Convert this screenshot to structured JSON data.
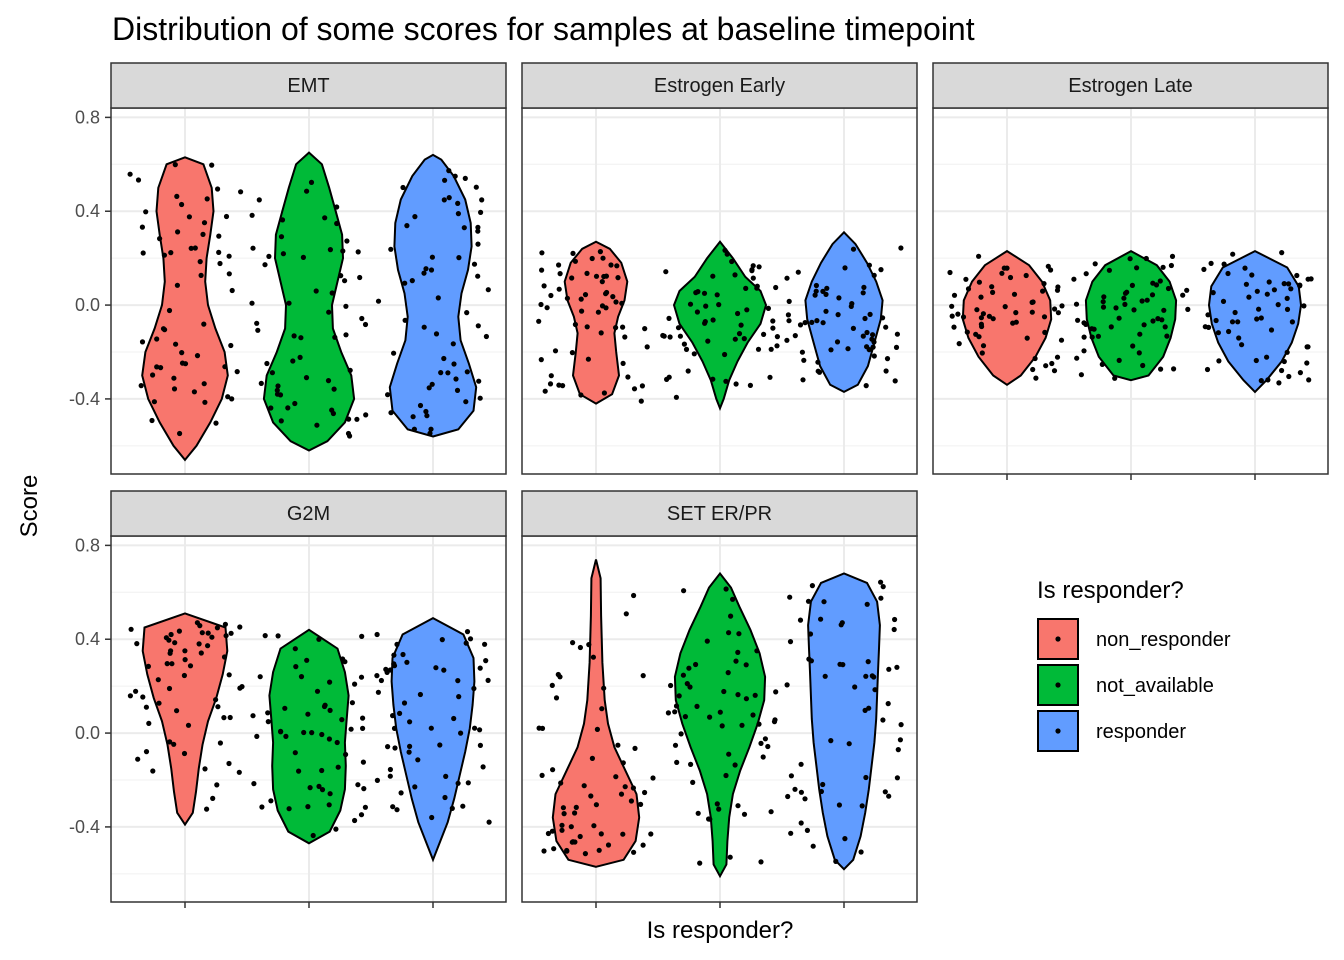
{
  "chart_data": {
    "type": "violin",
    "title": "Distribution of some scores for samples at baseline timepoint",
    "xlabel": "Is responder?",
    "ylabel": "Score",
    "ylim": [
      -0.72,
      0.84
    ],
    "yticks": [
      -0.4,
      0.0,
      0.4,
      0.8
    ],
    "ytick_labels": [
      "-0.4",
      "0.0",
      "0.4",
      "0.8"
    ],
    "grid": true,
    "legend": {
      "title": "Is responder?",
      "placement": "right",
      "entries": [
        "non_responder",
        "not_available",
        "responder"
      ]
    },
    "categories": [
      "non_responder",
      "not_available",
      "responder"
    ],
    "colors": {
      "non_responder": "#F8766D",
      "not_available": "#00BA38",
      "responder": "#619CFF"
    },
    "panels": [
      {
        "name": "EMT",
        "series": [
          {
            "category": "non_responder",
            "min": -0.66,
            "max": 0.63,
            "profile": [
              [
                -0.66,
                0.0
              ],
              [
                -0.6,
                0.25
              ],
              [
                -0.5,
                0.55
              ],
              [
                -0.4,
                0.8
              ],
              [
                -0.3,
                0.93
              ],
              [
                -0.2,
                0.86
              ],
              [
                -0.1,
                0.66
              ],
              [
                0.0,
                0.5
              ],
              [
                0.1,
                0.44
              ],
              [
                0.2,
                0.47
              ],
              [
                0.3,
                0.55
              ],
              [
                0.4,
                0.62
              ],
              [
                0.5,
                0.58
              ],
              [
                0.6,
                0.4
              ],
              [
                0.63,
                0.0
              ]
            ]
          },
          {
            "category": "not_available",
            "min": -0.62,
            "max": 0.65,
            "profile": [
              [
                -0.62,
                0.0
              ],
              [
                -0.58,
                0.4
              ],
              [
                -0.5,
                0.78
              ],
              [
                -0.4,
                0.98
              ],
              [
                -0.3,
                0.92
              ],
              [
                -0.2,
                0.7
              ],
              [
                -0.1,
                0.52
              ],
              [
                0.0,
                0.5
              ],
              [
                0.1,
                0.62
              ],
              [
                0.2,
                0.74
              ],
              [
                0.3,
                0.72
              ],
              [
                0.4,
                0.58
              ],
              [
                0.5,
                0.44
              ],
              [
                0.6,
                0.28
              ],
              [
                0.65,
                0.0
              ]
            ]
          },
          {
            "category": "responder",
            "min": -0.56,
            "max": 0.64,
            "profile": [
              [
                -0.56,
                0.0
              ],
              [
                -0.53,
                0.55
              ],
              [
                -0.45,
                0.88
              ],
              [
                -0.35,
                0.94
              ],
              [
                -0.25,
                0.78
              ],
              [
                -0.15,
                0.6
              ],
              [
                -0.05,
                0.55
              ],
              [
                0.05,
                0.62
              ],
              [
                0.15,
                0.76
              ],
              [
                0.25,
                0.84
              ],
              [
                0.35,
                0.82
              ],
              [
                0.45,
                0.7
              ],
              [
                0.55,
                0.45
              ],
              [
                0.62,
                0.18
              ],
              [
                0.64,
                0.0
              ]
            ]
          }
        ]
      },
      {
        "name": "Estrogen Early",
        "series": [
          {
            "category": "non_responder",
            "min": -0.42,
            "max": 0.27,
            "profile": [
              [
                -0.42,
                0.0
              ],
              [
                -0.38,
                0.35
              ],
              [
                -0.3,
                0.5
              ],
              [
                -0.2,
                0.44
              ],
              [
                -0.12,
                0.4
              ],
              [
                -0.05,
                0.48
              ],
              [
                0.02,
                0.62
              ],
              [
                0.1,
                0.68
              ],
              [
                0.18,
                0.55
              ],
              [
                0.24,
                0.3
              ],
              [
                0.27,
                0.0
              ]
            ]
          },
          {
            "category": "not_available",
            "min": -0.44,
            "max": 0.27,
            "profile": [
              [
                -0.44,
                0.0
              ],
              [
                -0.4,
                0.08
              ],
              [
                -0.32,
                0.2
              ],
              [
                -0.24,
                0.38
              ],
              [
                -0.16,
                0.6
              ],
              [
                -0.08,
                0.88
              ],
              [
                0.0,
                1.0
              ],
              [
                0.06,
                0.88
              ],
              [
                0.12,
                0.55
              ],
              [
                0.2,
                0.28
              ],
              [
                0.27,
                0.0
              ]
            ]
          },
          {
            "category": "responder",
            "min": -0.37,
            "max": 0.31,
            "profile": [
              [
                -0.37,
                0.0
              ],
              [
                -0.34,
                0.3
              ],
              [
                -0.26,
                0.52
              ],
              [
                -0.16,
                0.66
              ],
              [
                -0.06,
                0.8
              ],
              [
                0.02,
                0.84
              ],
              [
                0.1,
                0.7
              ],
              [
                0.18,
                0.5
              ],
              [
                0.26,
                0.25
              ],
              [
                0.31,
                0.0
              ]
            ]
          }
        ]
      },
      {
        "name": "Estrogen Late",
        "series": [
          {
            "category": "non_responder",
            "min": -0.34,
            "max": 0.23,
            "profile": [
              [
                -0.34,
                0.0
              ],
              [
                -0.3,
                0.3
              ],
              [
                -0.22,
                0.62
              ],
              [
                -0.14,
                0.84
              ],
              [
                -0.06,
                0.96
              ],
              [
                0.02,
                0.94
              ],
              [
                0.1,
                0.76
              ],
              [
                0.17,
                0.48
              ],
              [
                0.23,
                0.0
              ]
            ]
          },
          {
            "category": "not_available",
            "min": -0.32,
            "max": 0.23,
            "profile": [
              [
                -0.32,
                0.0
              ],
              [
                -0.3,
                0.38
              ],
              [
                -0.22,
                0.7
              ],
              [
                -0.14,
                0.86
              ],
              [
                -0.06,
                0.96
              ],
              [
                0.02,
                0.98
              ],
              [
                0.1,
                0.84
              ],
              [
                0.17,
                0.56
              ],
              [
                0.23,
                0.0
              ]
            ]
          },
          {
            "category": "responder",
            "min": -0.37,
            "max": 0.23,
            "profile": [
              [
                -0.37,
                0.0
              ],
              [
                -0.32,
                0.25
              ],
              [
                -0.24,
                0.58
              ],
              [
                -0.16,
                0.8
              ],
              [
                -0.08,
                0.94
              ],
              [
                0.0,
                1.0
              ],
              [
                0.08,
                0.95
              ],
              [
                0.16,
                0.7
              ],
              [
                0.23,
                0.0
              ]
            ]
          }
        ]
      },
      {
        "name": "G2M",
        "series": [
          {
            "category": "non_responder",
            "min": -0.39,
            "max": 0.51,
            "profile": [
              [
                -0.39,
                0.0
              ],
              [
                -0.34,
                0.17
              ],
              [
                -0.25,
                0.24
              ],
              [
                -0.15,
                0.3
              ],
              [
                -0.05,
                0.38
              ],
              [
                0.05,
                0.5
              ],
              [
                0.15,
                0.68
              ],
              [
                0.25,
                0.82
              ],
              [
                0.35,
                0.92
              ],
              [
                0.45,
                0.88
              ],
              [
                0.51,
                0.0
              ]
            ]
          },
          {
            "category": "not_available",
            "min": -0.47,
            "max": 0.44,
            "profile": [
              [
                -0.47,
                0.0
              ],
              [
                -0.42,
                0.45
              ],
              [
                -0.33,
                0.68
              ],
              [
                -0.24,
                0.78
              ],
              [
                -0.14,
                0.8
              ],
              [
                -0.04,
                0.78
              ],
              [
                0.06,
                0.82
              ],
              [
                0.16,
                0.86
              ],
              [
                0.26,
                0.78
              ],
              [
                0.36,
                0.62
              ],
              [
                0.44,
                0.0
              ]
            ]
          },
          {
            "category": "responder",
            "min": -0.54,
            "max": 0.49,
            "profile": [
              [
                -0.54,
                0.0
              ],
              [
                -0.48,
                0.12
              ],
              [
                -0.38,
                0.32
              ],
              [
                -0.28,
                0.46
              ],
              [
                -0.18,
                0.58
              ],
              [
                -0.08,
                0.7
              ],
              [
                0.02,
                0.8
              ],
              [
                0.12,
                0.86
              ],
              [
                0.22,
                0.9
              ],
              [
                0.32,
                0.88
              ],
              [
                0.42,
                0.66
              ],
              [
                0.49,
                0.0
              ]
            ]
          }
        ]
      },
      {
        "name": "SET ER/PR",
        "series": [
          {
            "category": "non_responder",
            "min": -0.57,
            "max": 0.74,
            "profile": [
              [
                -0.57,
                0.0
              ],
              [
                -0.54,
                0.6
              ],
              [
                -0.46,
                0.86
              ],
              [
                -0.36,
                0.94
              ],
              [
                -0.26,
                0.88
              ],
              [
                -0.16,
                0.64
              ],
              [
                -0.06,
                0.4
              ],
              [
                0.04,
                0.26
              ],
              [
                0.14,
                0.19
              ],
              [
                0.3,
                0.14
              ],
              [
                0.5,
                0.11
              ],
              [
                0.66,
                0.1
              ],
              [
                0.74,
                0.0
              ]
            ]
          },
          {
            "category": "not_available",
            "min": -0.61,
            "max": 0.68,
            "profile": [
              [
                -0.61,
                0.0
              ],
              [
                -0.56,
                0.14
              ],
              [
                -0.46,
                0.16
              ],
              [
                -0.36,
                0.2
              ],
              [
                -0.26,
                0.28
              ],
              [
                -0.16,
                0.44
              ],
              [
                -0.06,
                0.64
              ],
              [
                0.04,
                0.82
              ],
              [
                0.14,
                0.96
              ],
              [
                0.24,
                0.98
              ],
              [
                0.34,
                0.86
              ],
              [
                0.44,
                0.66
              ],
              [
                0.54,
                0.42
              ],
              [
                0.62,
                0.24
              ],
              [
                0.68,
                0.0
              ]
            ]
          },
          {
            "category": "responder",
            "min": -0.58,
            "max": 0.68,
            "profile": [
              [
                -0.58,
                0.0
              ],
              [
                -0.54,
                0.2
              ],
              [
                -0.44,
                0.36
              ],
              [
                -0.34,
                0.46
              ],
              [
                -0.24,
                0.54
              ],
              [
                -0.14,
                0.6
              ],
              [
                -0.04,
                0.66
              ],
              [
                0.06,
                0.7
              ],
              [
                0.16,
                0.72
              ],
              [
                0.26,
                0.74
              ],
              [
                0.36,
                0.76
              ],
              [
                0.46,
                0.78
              ],
              [
                0.56,
                0.72
              ],
              [
                0.64,
                0.5
              ],
              [
                0.68,
                0.0
              ]
            ]
          }
        ]
      }
    ]
  }
}
